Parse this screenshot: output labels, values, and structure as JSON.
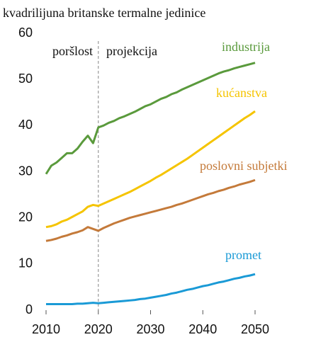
{
  "chart_data": {
    "type": "line",
    "title": "kvadrilijuna britanske termalne jedinice",
    "annotations": [
      "poršlost",
      "projekcija"
    ],
    "vline": 2020,
    "x": [
      2010,
      2011,
      2012,
      2013,
      2014,
      2015,
      2016,
      2017,
      2018,
      2019,
      2020,
      2021,
      2022,
      2023,
      2024,
      2025,
      2026,
      2027,
      2028,
      2029,
      2030,
      2031,
      2032,
      2033,
      2034,
      2035,
      2036,
      2037,
      2038,
      2039,
      2040,
      2041,
      2042,
      2043,
      2044,
      2045,
      2046,
      2047,
      2048,
      2049,
      2050
    ],
    "series": [
      {
        "name": "industrija",
        "color": "#5a9a3c",
        "values": [
          29.5,
          31.3,
          32.0,
          33.0,
          34.0,
          34.0,
          35.0,
          36.5,
          37.8,
          36.2,
          39.6,
          40.0,
          40.6,
          41.0,
          41.6,
          42.0,
          42.5,
          43.0,
          43.6,
          44.2,
          44.6,
          45.2,
          45.8,
          46.2,
          46.8,
          47.2,
          47.8,
          48.3,
          48.8,
          49.3,
          49.8,
          50.3,
          50.8,
          51.3,
          51.7,
          52.0,
          52.4,
          52.7,
          53.0,
          53.3,
          53.6
        ]
      },
      {
        "name": "kućanstva",
        "color": "#f5c400",
        "values": [
          18.0,
          18.2,
          18.6,
          19.2,
          19.6,
          20.2,
          20.8,
          21.4,
          22.4,
          22.8,
          22.6,
          23.1,
          23.6,
          24.1,
          24.6,
          25.1,
          25.6,
          26.2,
          26.8,
          27.4,
          28.0,
          28.7,
          29.3,
          30.0,
          30.7,
          31.4,
          32.1,
          32.8,
          33.6,
          34.4,
          35.2,
          36.0,
          36.8,
          37.6,
          38.4,
          39.2,
          40.0,
          40.8,
          41.6,
          42.3,
          43.1
        ]
      },
      {
        "name": "poslovni subjetki",
        "color": "#c47a3a",
        "values": [
          15.0,
          15.2,
          15.5,
          15.9,
          16.2,
          16.6,
          16.9,
          17.3,
          18.0,
          17.6,
          17.2,
          17.8,
          18.3,
          18.8,
          19.2,
          19.6,
          20.0,
          20.3,
          20.6,
          20.9,
          21.2,
          21.5,
          21.8,
          22.1,
          22.4,
          22.8,
          23.1,
          23.5,
          23.9,
          24.3,
          24.7,
          25.1,
          25.4,
          25.8,
          26.1,
          26.5,
          26.8,
          27.2,
          27.5,
          27.8,
          28.2
        ]
      },
      {
        "name": "promet",
        "color": "#1a9ad6",
        "values": [
          1.3,
          1.3,
          1.3,
          1.3,
          1.3,
          1.3,
          1.4,
          1.4,
          1.5,
          1.6,
          1.5,
          1.6,
          1.7,
          1.8,
          1.9,
          2.0,
          2.1,
          2.2,
          2.4,
          2.5,
          2.7,
          2.9,
          3.1,
          3.3,
          3.6,
          3.8,
          4.1,
          4.4,
          4.6,
          4.9,
          5.2,
          5.4,
          5.7,
          6.0,
          6.2,
          6.5,
          6.8,
          7.0,
          7.3,
          7.5,
          7.8
        ]
      }
    ],
    "xlim": [
      2010,
      2050
    ],
    "xticks": [
      2010,
      2020,
      2030,
      2040,
      2050
    ],
    "ylim": [
      0,
      60
    ],
    "yticks": [
      0,
      10,
      20,
      30,
      40,
      50,
      60
    ]
  }
}
